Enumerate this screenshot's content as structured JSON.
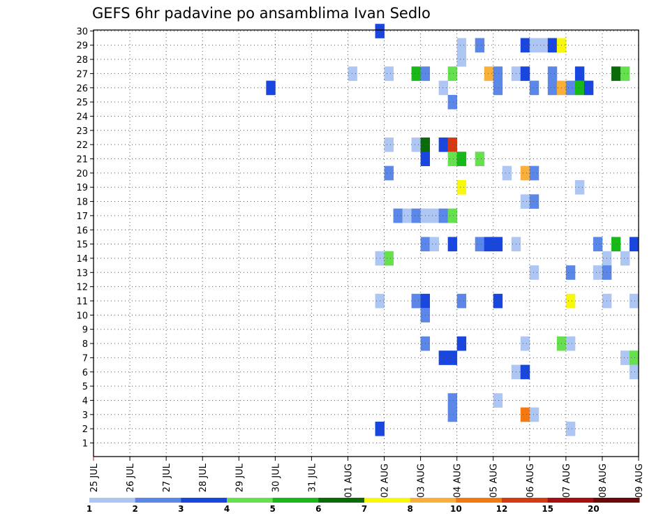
{
  "chart_data": {
    "type": "heatmap",
    "title": "GEFS 6hr padavine po ansamblima Ivan Sedlo",
    "x_tick_labels": [
      "25 JUL",
      "26 JUL",
      "27 JUL",
      "28 JUL",
      "29 JUL",
      "30 JUL",
      "31 JUL",
      "01 AUG",
      "02 AUG",
      "03 AUG",
      "04 AUG",
      "05 AUG",
      "06 AUG",
      "07 AUG",
      "08 AUG",
      "09 AUG"
    ],
    "y_tick_labels": [
      "1",
      "2",
      "3",
      "4",
      "5",
      "6",
      "7",
      "8",
      "9",
      "10",
      "11",
      "12",
      "13",
      "14",
      "15",
      "16",
      "17",
      "18",
      "19",
      "20",
      "21",
      "22",
      "23",
      "24",
      "25",
      "26",
      "27",
      "28",
      "29",
      "30"
    ],
    "x_range_days": [
      0,
      15
    ],
    "y_range": [
      0,
      30
    ],
    "time_step_hours": 6,
    "grid": true,
    "legend_placement": "bottom",
    "legend_values": [
      "1",
      "2",
      "3",
      "4",
      "5",
      "6",
      "7",
      "8",
      "10",
      "12",
      "15",
      "20"
    ],
    "legend_colors": [
      "#aec6f4",
      "#5b87e8",
      "#1a46e0",
      "#66e04f",
      "#17b817",
      "#0b6b0b",
      "#f8f80a",
      "#f8b03a",
      "#f47a10",
      "#d63a12",
      "#a61010",
      "#6b0808"
    ],
    "cells": [
      {
        "member": 30,
        "day": 7.75,
        "cls": 3
      },
      {
        "member": 29,
        "day": 10.0,
        "cls": 1
      },
      {
        "member": 29,
        "day": 10.5,
        "cls": 2
      },
      {
        "member": 29,
        "day": 11.75,
        "cls": 3
      },
      {
        "member": 29,
        "day": 12.0,
        "cls": 1
      },
      {
        "member": 29,
        "day": 12.25,
        "cls": 1
      },
      {
        "member": 29,
        "day": 12.5,
        "cls": 3
      },
      {
        "member": 29,
        "day": 12.75,
        "cls": 7
      },
      {
        "member": 28,
        "day": 10.0,
        "cls": 1
      },
      {
        "member": 27,
        "day": 7.0,
        "cls": 1
      },
      {
        "member": 27,
        "day": 8.0,
        "cls": 1
      },
      {
        "member": 27,
        "day": 8.75,
        "cls": 5
      },
      {
        "member": 27,
        "day": 9.0,
        "cls": 2
      },
      {
        "member": 27,
        "day": 9.75,
        "cls": 4
      },
      {
        "member": 27,
        "day": 10.75,
        "cls": 8
      },
      {
        "member": 27,
        "day": 11.0,
        "cls": 2
      },
      {
        "member": 27,
        "day": 11.5,
        "cls": 1
      },
      {
        "member": 27,
        "day": 11.75,
        "cls": 3
      },
      {
        "member": 27,
        "day": 12.5,
        "cls": 2
      },
      {
        "member": 27,
        "day": 13.25,
        "cls": 3
      },
      {
        "member": 27,
        "day": 14.25,
        "cls": 6
      },
      {
        "member": 27,
        "day": 14.5,
        "cls": 4
      },
      {
        "member": 26,
        "day": 4.75,
        "cls": 3
      },
      {
        "member": 26,
        "day": 9.5,
        "cls": 1
      },
      {
        "member": 26,
        "day": 11.0,
        "cls": 2
      },
      {
        "member": 26,
        "day": 12.0,
        "cls": 2
      },
      {
        "member": 26,
        "day": 12.5,
        "cls": 2
      },
      {
        "member": 26,
        "day": 12.75,
        "cls": 8
      },
      {
        "member": 26,
        "day": 13.0,
        "cls": 2
      },
      {
        "member": 26,
        "day": 13.25,
        "cls": 5
      },
      {
        "member": 26,
        "day": 13.5,
        "cls": 3
      },
      {
        "member": 25,
        "day": 9.75,
        "cls": 2
      },
      {
        "member": 22,
        "day": 8.0,
        "cls": 1
      },
      {
        "member": 22,
        "day": 8.75,
        "cls": 1
      },
      {
        "member": 22,
        "day": 9.0,
        "cls": 6
      },
      {
        "member": 22,
        "day": 9.5,
        "cls": 3
      },
      {
        "member": 22,
        "day": 9.75,
        "cls": 10
      },
      {
        "member": 21,
        "day": 9.0,
        "cls": 3
      },
      {
        "member": 21,
        "day": 9.75,
        "cls": 4
      },
      {
        "member": 21,
        "day": 10.0,
        "cls": 5
      },
      {
        "member": 21,
        "day": 10.5,
        "cls": 4
      },
      {
        "member": 20,
        "day": 8.0,
        "cls": 2
      },
      {
        "member": 20,
        "day": 11.25,
        "cls": 1
      },
      {
        "member": 20,
        "day": 11.75,
        "cls": 8
      },
      {
        "member": 20,
        "day": 12.0,
        "cls": 2
      },
      {
        "member": 19,
        "day": 10.0,
        "cls": 7
      },
      {
        "member": 19,
        "day": 13.25,
        "cls": 1
      },
      {
        "member": 18,
        "day": 11.75,
        "cls": 1
      },
      {
        "member": 18,
        "day": 12.0,
        "cls": 2
      },
      {
        "member": 17,
        "day": 8.25,
        "cls": 2
      },
      {
        "member": 17,
        "day": 8.5,
        "cls": 1
      },
      {
        "member": 17,
        "day": 8.75,
        "cls": 2
      },
      {
        "member": 17,
        "day": 9.0,
        "cls": 1
      },
      {
        "member": 17,
        "day": 9.25,
        "cls": 1
      },
      {
        "member": 17,
        "day": 9.5,
        "cls": 2
      },
      {
        "member": 17,
        "day": 9.75,
        "cls": 4
      },
      {
        "member": 15,
        "day": 9.0,
        "cls": 2
      },
      {
        "member": 15,
        "day": 9.25,
        "cls": 1
      },
      {
        "member": 15,
        "day": 9.75,
        "cls": 3
      },
      {
        "member": 15,
        "day": 10.5,
        "cls": 2
      },
      {
        "member": 15,
        "day": 10.75,
        "cls": 3
      },
      {
        "member": 15,
        "day": 11.0,
        "cls": 3
      },
      {
        "member": 15,
        "day": 11.5,
        "cls": 1
      },
      {
        "member": 15,
        "day": 13.75,
        "cls": 2
      },
      {
        "member": 15,
        "day": 14.25,
        "cls": 5
      },
      {
        "member": 15,
        "day": 14.75,
        "cls": 3
      },
      {
        "member": 14,
        "day": 7.75,
        "cls": 1
      },
      {
        "member": 14,
        "day": 8.0,
        "cls": 4
      },
      {
        "member": 14,
        "day": 14.0,
        "cls": 1
      },
      {
        "member": 14,
        "day": 14.5,
        "cls": 1
      },
      {
        "member": 13,
        "day": 12.0,
        "cls": 1
      },
      {
        "member": 13,
        "day": 13.0,
        "cls": 2
      },
      {
        "member": 13,
        "day": 13.75,
        "cls": 1
      },
      {
        "member": 13,
        "day": 14.0,
        "cls": 2
      },
      {
        "member": 11,
        "day": 7.75,
        "cls": 1
      },
      {
        "member": 11,
        "day": 8.75,
        "cls": 2
      },
      {
        "member": 11,
        "day": 9.0,
        "cls": 3
      },
      {
        "member": 11,
        "day": 10.0,
        "cls": 2
      },
      {
        "member": 11,
        "day": 11.0,
        "cls": 3
      },
      {
        "member": 11,
        "day": 13.0,
        "cls": 7
      },
      {
        "member": 11,
        "day": 14.0,
        "cls": 1
      },
      {
        "member": 11,
        "day": 14.75,
        "cls": 1
      },
      {
        "member": 10,
        "day": 9.0,
        "cls": 2
      },
      {
        "member": 8,
        "day": 9.0,
        "cls": 2
      },
      {
        "member": 8,
        "day": 10.0,
        "cls": 3
      },
      {
        "member": 8,
        "day": 11.75,
        "cls": 1
      },
      {
        "member": 8,
        "day": 12.75,
        "cls": 4
      },
      {
        "member": 8,
        "day": 13.0,
        "cls": 1
      },
      {
        "member": 7,
        "day": 9.5,
        "cls": 3
      },
      {
        "member": 7,
        "day": 9.75,
        "cls": 3
      },
      {
        "member": 7,
        "day": 14.5,
        "cls": 1
      },
      {
        "member": 7,
        "day": 14.75,
        "cls": 4
      },
      {
        "member": 6,
        "day": 11.5,
        "cls": 1
      },
      {
        "member": 6,
        "day": 11.75,
        "cls": 3
      },
      {
        "member": 6,
        "day": 14.75,
        "cls": 1
      },
      {
        "member": 4,
        "day": 9.75,
        "cls": 2
      },
      {
        "member": 4,
        "day": 11.0,
        "cls": 1
      },
      {
        "member": 3,
        "day": 9.75,
        "cls": 2
      },
      {
        "member": 3,
        "day": 11.75,
        "cls": 9
      },
      {
        "member": 3,
        "day": 12.0,
        "cls": 1
      },
      {
        "member": 2,
        "day": 7.75,
        "cls": 3
      },
      {
        "member": 2,
        "day": 13.0,
        "cls": 1
      }
    ]
  }
}
